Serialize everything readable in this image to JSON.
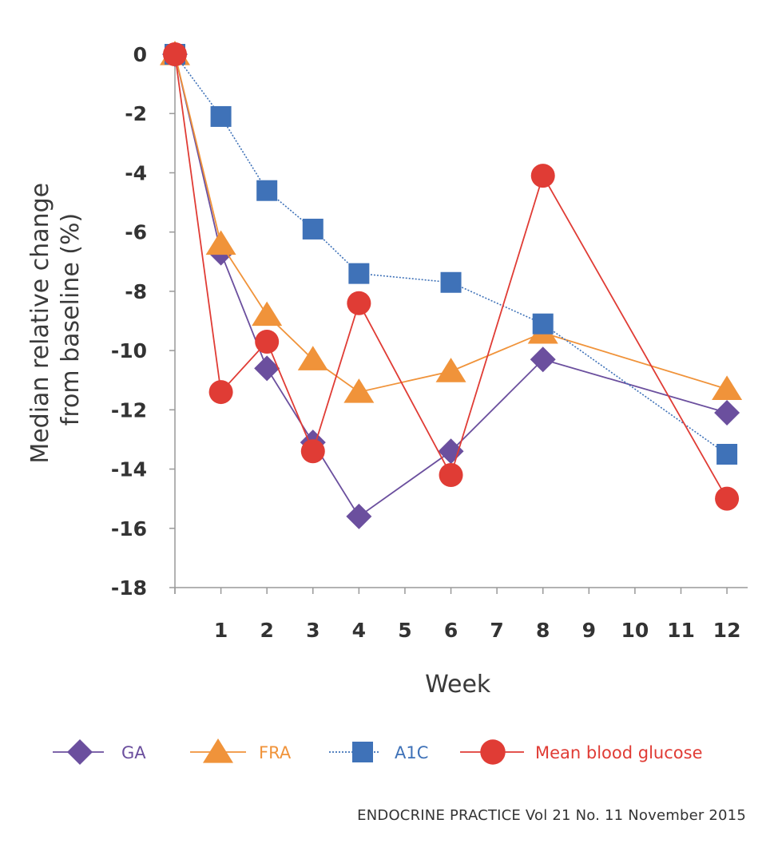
{
  "chart_data": {
    "type": "line",
    "xlabel": "Week",
    "ylabel_lines": [
      "Median relative change",
      "from baseline (%)"
    ],
    "ylim": [
      -18,
      0
    ],
    "yticks": [
      0,
      -2,
      -4,
      -6,
      -8,
      -10,
      -12,
      -14,
      -16,
      -18
    ],
    "xlim": [
      0,
      12.45
    ],
    "xticks": [
      1,
      2,
      3,
      4,
      5,
      6,
      7,
      8,
      9,
      10,
      11,
      12
    ],
    "grid": false,
    "legend_position": "bottom",
    "series": [
      {
        "name": "GA",
        "color": "#6b4f9e",
        "marker": "diamond",
        "line": "solid",
        "x": [
          0,
          1,
          2,
          3,
          4,
          6,
          8,
          12
        ],
        "values": [
          0,
          -6.7,
          -10.6,
          -13.1,
          -15.6,
          -13.4,
          -10.3,
          -12.1
        ]
      },
      {
        "name": "FRA",
        "color": "#f0933a",
        "marker": "triangle",
        "line": "solid",
        "x": [
          0,
          1,
          2,
          3,
          4,
          6,
          8,
          12
        ],
        "values": [
          0,
          -6.4,
          -8.8,
          -10.3,
          -11.4,
          -10.7,
          -9.4,
          -11.3
        ]
      },
      {
        "name": "A1C",
        "color": "#3f72b8",
        "marker": "square",
        "line": "dotted",
        "x": [
          0,
          1,
          2,
          3,
          4,
          6,
          8,
          12
        ],
        "values": [
          0,
          -2.1,
          -4.6,
          -5.9,
          -7.4,
          -7.7,
          -9.1,
          -13.5
        ]
      },
      {
        "name": "Mean blood glucose",
        "color": "#e03c35",
        "marker": "circle",
        "line": "solid",
        "x": [
          0,
          1,
          2,
          3,
          4,
          6,
          8,
          12
        ],
        "values": [
          0,
          -11.4,
          -9.7,
          -13.4,
          -8.4,
          -14.2,
          -4.1,
          -15.0
        ]
      }
    ]
  },
  "source": "ENDOCRINE PRACTICE Vol 21 No. 11 November 2015"
}
